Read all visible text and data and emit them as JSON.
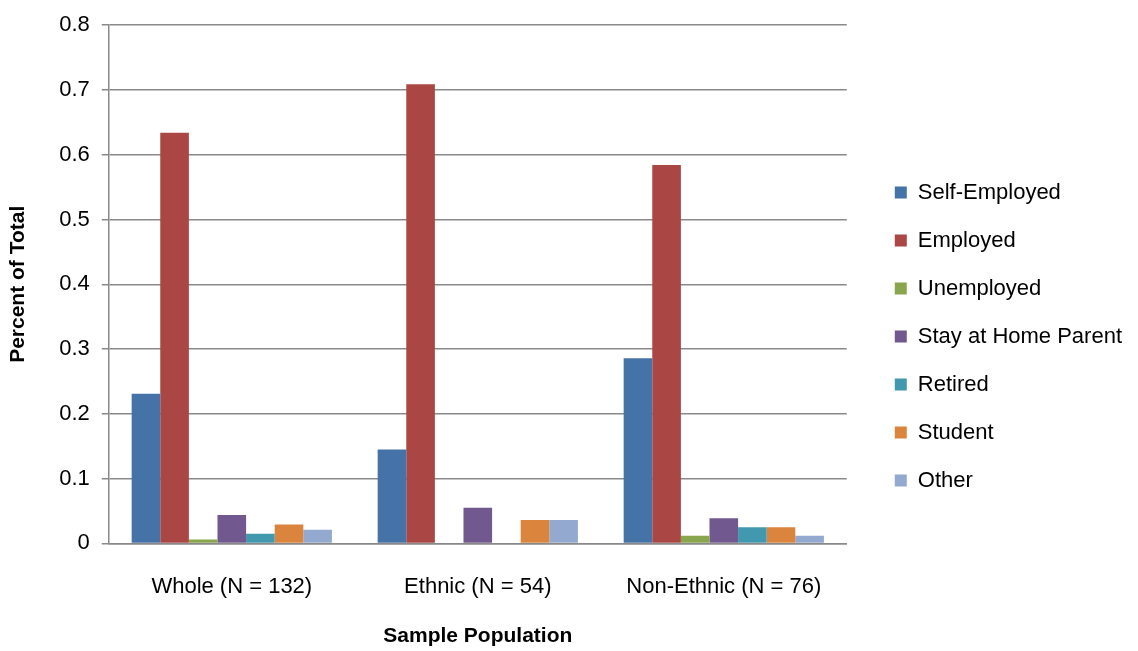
{
  "chart_data": {
    "type": "bar",
    "xlabel": "Sample Population",
    "ylabel": "Percent of Total",
    "categories": [
      "Whole (N = 132)",
      "Ethnic (N = 54)",
      "Non-Ethnic (N = 76)"
    ],
    "series": [
      {
        "name": "Self-Employed",
        "color": "#4572a7",
        "values": [
          0.231,
          0.145,
          0.286
        ]
      },
      {
        "name": "Employed",
        "color": "#aa4643",
        "values": [
          0.634,
          0.709,
          0.584
        ]
      },
      {
        "name": "Unemployed",
        "color": "#89a54e",
        "values": [
          0.006,
          0,
          0.012
        ]
      },
      {
        "name": "Stay at Home Parent",
        "color": "#71588f",
        "values": [
          0.044,
          0.055,
          0.039
        ]
      },
      {
        "name": "Retired",
        "color": "#4198af",
        "values": [
          0.015,
          0,
          0.025
        ]
      },
      {
        "name": "Student",
        "color": "#db843d",
        "values": [
          0.029,
          0.036,
          0.025
        ]
      },
      {
        "name": "Other",
        "color": "#93a9cf",
        "values": [
          0.021,
          0.036,
          0.012
        ]
      }
    ],
    "ylim": [
      0,
      0.8
    ],
    "yticks": [
      0,
      0.1,
      0.2,
      0.3,
      0.4,
      0.5,
      0.6,
      0.7,
      0.8
    ],
    "grid": "y",
    "legend": "right"
  }
}
